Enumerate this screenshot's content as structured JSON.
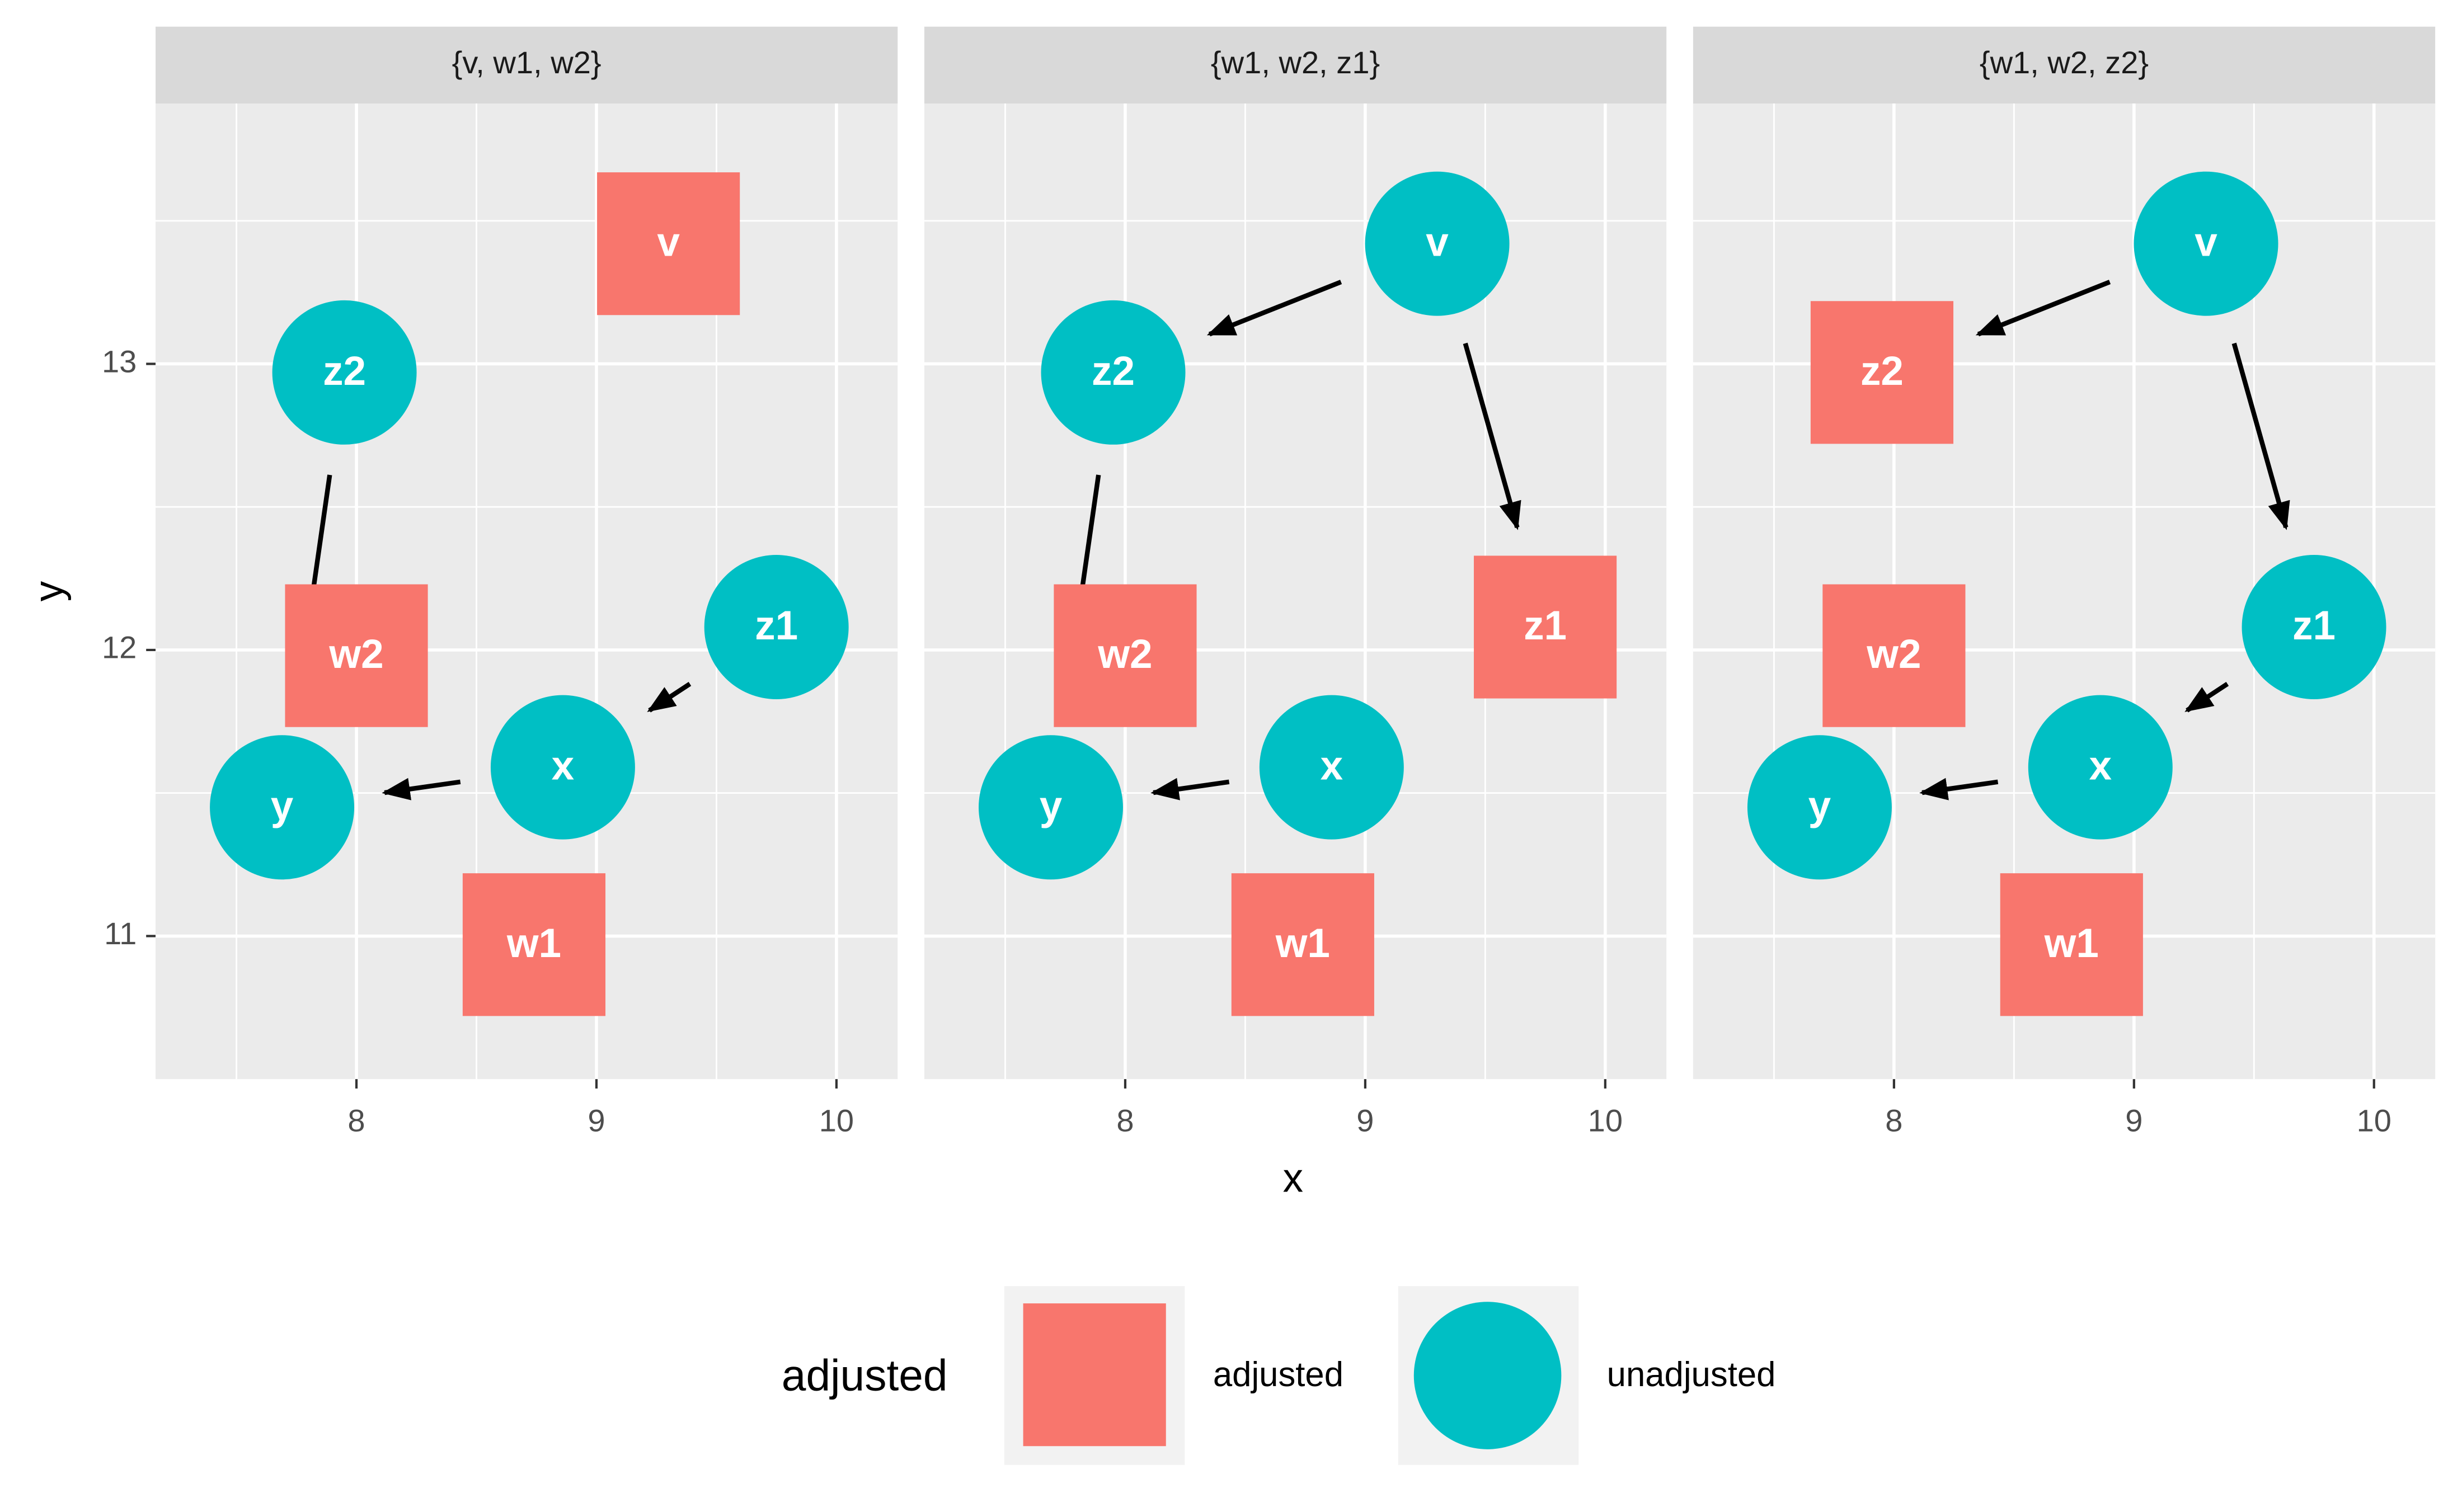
{
  "chart_data": {
    "type": "dag",
    "x_label": "x",
    "y_label": "y",
    "xlim": [
      7.163,
      10.255
    ],
    "ylim": [
      10.5,
      13.91
    ],
    "xticks": [
      8,
      9,
      10
    ],
    "yticks": [
      11,
      12,
      13
    ],
    "grid": true,
    "nodes": {
      "names": [
        "v",
        "z2",
        "w2",
        "z1",
        "x",
        "y",
        "w1"
      ],
      "x": [
        9.3,
        7.95,
        8.0,
        9.75,
        8.86,
        7.69,
        8.74
      ],
      "y": [
        13.42,
        12.97,
        11.98,
        12.08,
        11.59,
        11.45,
        10.97
      ]
    },
    "facets": [
      {
        "title": "{v, w1, w2}",
        "adjusted": [
          "v",
          "w1",
          "w2"
        ],
        "edges": [
          [
            "z2",
            "y"
          ],
          [
            "z1",
            "x"
          ],
          [
            "x",
            "y"
          ]
        ]
      },
      {
        "title": "{w1, w2, z1}",
        "adjusted": [
          "w1",
          "w2",
          "z1"
        ],
        "edges": [
          [
            "v",
            "z2"
          ],
          [
            "v",
            "z1"
          ],
          [
            "z2",
            "y"
          ],
          [
            "x",
            "y"
          ]
        ]
      },
      {
        "title": "{w1, w2, z2}",
        "adjusted": [
          "w1",
          "w2",
          "z2"
        ],
        "edges": [
          [
            "v",
            "z2"
          ],
          [
            "v",
            "z1"
          ],
          [
            "z1",
            "x"
          ],
          [
            "x",
            "y"
          ]
        ]
      }
    ],
    "legend": {
      "title": "adjusted",
      "position": "bottom",
      "items": [
        {
          "name": "adjusted",
          "color": "#F8766D",
          "shape": "square"
        },
        {
          "name": "unadjusted",
          "color": "#00BFC4",
          "shape": "circle"
        }
      ]
    }
  }
}
